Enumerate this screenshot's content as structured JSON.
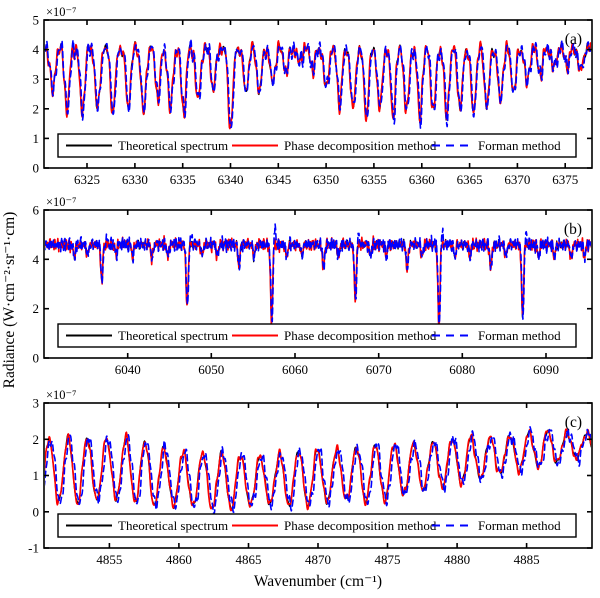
{
  "labels": {
    "xlabel": "Wavenumber (cm⁻¹)",
    "ylabel": "Radiance (W·cm⁻²·sr⁻¹·cm)"
  },
  "legend": {
    "items": [
      {
        "label": "Theoretical spectrum",
        "color": "#000000",
        "dash": "solid"
      },
      {
        "label": "Phase decomposition method",
        "color": "#ff0000",
        "dash": "solid"
      },
      {
        "label": "Forman method",
        "color": "#0000ff",
        "dash": "dashed"
      }
    ]
  },
  "chart_data": [
    {
      "id": "a",
      "type": "line",
      "panel_label": "(a)",
      "scale_label": "×10⁻⁷",
      "x_range": [
        6320.5,
        6377.8
      ],
      "y_range": [
        0,
        5
      ],
      "x_ticks": [
        6325,
        6330,
        6335,
        6340,
        6345,
        6350,
        6355,
        6360,
        6365,
        6370,
        6375
      ],
      "y_ticks": [
        0,
        1,
        2,
        3,
        4,
        5
      ],
      "signal": {
        "kind": "absorption",
        "baseline": 4.05,
        "line_width": 0.34,
        "noise_amp": 0.14,
        "noise_freqs": [
          1.05,
          1.8,
          2.6
        ],
        "seed": 11,
        "lines": [
          [
            6321.4,
            1.5
          ],
          [
            6322.9,
            2.1
          ],
          [
            6324.5,
            2.2
          ],
          [
            6326.1,
            2.1
          ],
          [
            6327.7,
            2.2
          ],
          [
            6329.3,
            2.0
          ],
          [
            6330.9,
            2.2
          ],
          [
            6332.4,
            1.7
          ],
          [
            6333.7,
            2.1
          ],
          [
            6335.1,
            2.2
          ],
          [
            6336.6,
            1.8
          ],
          [
            6338.2,
            1.4
          ],
          [
            6340.0,
            2.7
          ],
          [
            6341.6,
            1.5
          ],
          [
            6343.0,
            1.5
          ],
          [
            6344.4,
            1.2
          ],
          [
            6345.8,
            0.8
          ],
          [
            6347.2,
            0.5
          ],
          [
            6348.6,
            0.7
          ],
          [
            6350.0,
            1.4
          ],
          [
            6351.4,
            1.9
          ],
          [
            6352.8,
            2.1
          ],
          [
            6354.2,
            2.3
          ],
          [
            6355.6,
            2.1
          ],
          [
            6357.0,
            2.3
          ],
          [
            6358.4,
            2.2
          ],
          [
            6359.8,
            2.3
          ],
          [
            6361.2,
            2.2
          ],
          [
            6362.6,
            2.3
          ],
          [
            6364.0,
            2.1
          ],
          [
            6365.4,
            2.2
          ],
          [
            6366.8,
            2.0
          ],
          [
            6368.2,
            1.8
          ],
          [
            6369.6,
            1.5
          ],
          [
            6371.0,
            1.2
          ],
          [
            6372.4,
            0.9
          ],
          [
            6373.8,
            0.7
          ],
          [
            6375.2,
            0.6
          ],
          [
            6376.6,
            0.8
          ]
        ]
      },
      "series": [
        {
          "name": "Theoretical spectrum",
          "color": "#000000",
          "style": "solid",
          "width": 1.3,
          "deviation": 0,
          "shift": 0
        },
        {
          "name": "Phase decomposition method",
          "color": "#ff0000",
          "style": "solid",
          "width": 1.6,
          "deviation": 0.08,
          "shift": 0
        },
        {
          "name": "Forman method",
          "color": "#0000ff",
          "style": "dashed",
          "width": 1.6,
          "deviation": 0.12,
          "shift": 0.06
        }
      ]
    },
    {
      "id": "b",
      "type": "line",
      "panel_label": "(b)",
      "scale_label": "×10⁻⁷",
      "x_range": [
        6030,
        6095.5
      ],
      "y_range": [
        0,
        6
      ],
      "x_ticks": [
        6040,
        6050,
        6060,
        6070,
        6080,
        6090
      ],
      "y_ticks": [
        0,
        2,
        4,
        6
      ],
      "signal": {
        "kind": "absorption",
        "baseline": 4.6,
        "line_width": 0.17,
        "noise_amp": 0.13,
        "noise_freqs": [
          2.2,
          3.6,
          5.2
        ],
        "seed": 22,
        "lines": [
          [
            6033.6,
            0.5
          ],
          [
            6035.2,
            0.45
          ],
          [
            6036.9,
            1.5
          ],
          [
            6038.6,
            0.4
          ],
          [
            6040.6,
            0.5
          ],
          [
            6042.9,
            0.6
          ],
          [
            6044.8,
            0.5
          ],
          [
            6047.1,
            2.6
          ],
          [
            6048.9,
            0.45
          ],
          [
            6050.7,
            0.5
          ],
          [
            6053.3,
            0.9
          ],
          [
            6055.1,
            0.5
          ],
          [
            6057.2,
            3.2
          ],
          [
            6059.0,
            0.5
          ],
          [
            6060.8,
            0.45
          ],
          [
            6063.4,
            1.0
          ],
          [
            6065.2,
            0.5
          ],
          [
            6067.2,
            2.3
          ],
          [
            6069.0,
            0.5
          ],
          [
            6070.9,
            0.45
          ],
          [
            6073.4,
            1.05
          ],
          [
            6075.2,
            0.5
          ],
          [
            6077.2,
            3.4
          ],
          [
            6079.1,
            0.5
          ],
          [
            6080.9,
            0.5
          ],
          [
            6083.4,
            1.0
          ],
          [
            6085.2,
            0.5
          ],
          [
            6087.2,
            3.0
          ],
          [
            6089.1,
            0.5
          ],
          [
            6091.0,
            0.5
          ],
          [
            6093.0,
            0.6
          ],
          [
            6094.6,
            0.5
          ]
        ],
        "forman_spikes": [
          [
            6037.5,
            0.3
          ],
          [
            6047.6,
            0.4
          ],
          [
            6057.6,
            0.85
          ],
          [
            6067.6,
            0.5
          ],
          [
            6077.6,
            0.6
          ],
          [
            6087.6,
            0.5
          ]
        ],
        "spike_width": 0.12
      },
      "series": [
        {
          "name": "Theoretical spectrum",
          "color": "#000000",
          "style": "solid",
          "width": 1.3,
          "deviation": 0,
          "shift": 0
        },
        {
          "name": "Phase decomposition method",
          "color": "#ff0000",
          "style": "solid",
          "width": 1.6,
          "deviation": 0.09,
          "shift": 0
        },
        {
          "name": "Forman method",
          "color": "#0000ff",
          "style": "dashed",
          "width": 1.6,
          "deviation": 0.12,
          "shift": 0.04
        }
      ]
    },
    {
      "id": "c",
      "type": "line",
      "panel_label": "(c)",
      "scale_label": "×10⁻⁷",
      "x_range": [
        4850.3,
        4889.7
      ],
      "y_range": [
        -1,
        3
      ],
      "x_ticks": [
        4855,
        4860,
        4865,
        4870,
        4875,
        4880,
        4885
      ],
      "y_ticks": [
        -1,
        0,
        1,
        2,
        3
      ],
      "signal": {
        "kind": "oscillation",
        "period": 1.38,
        "phase_x0": 4850.65,
        "noise_amp": 0.07,
        "noise_freqs": [
          0.9,
          1.9,
          3.1
        ],
        "seed": 33,
        "mean_points": [
          [
            4850.3,
            1.15
          ],
          [
            4853,
            1.15
          ],
          [
            4856,
            1.2
          ],
          [
            4859,
            0.95
          ],
          [
            4862,
            0.85
          ],
          [
            4865,
            0.85
          ],
          [
            4868,
            0.9
          ],
          [
            4871,
            1.0
          ],
          [
            4874,
            1.05
          ],
          [
            4877,
            1.2
          ],
          [
            4880,
            1.4
          ],
          [
            4883,
            1.55
          ],
          [
            4886,
            1.75
          ],
          [
            4889.7,
            1.85
          ]
        ],
        "amp_points": [
          [
            4850.3,
            0.8
          ],
          [
            4853,
            0.9
          ],
          [
            4856,
            0.85
          ],
          [
            4859,
            0.8
          ],
          [
            4862,
            0.75
          ],
          [
            4865,
            0.7
          ],
          [
            4868,
            0.7
          ],
          [
            4871,
            0.75
          ],
          [
            4874,
            0.75
          ],
          [
            4877,
            0.7
          ],
          [
            4880,
            0.6
          ],
          [
            4883,
            0.55
          ],
          [
            4886,
            0.45
          ],
          [
            4889.7,
            0.35
          ]
        ]
      },
      "series": [
        {
          "name": "Theoretical spectrum",
          "color": "#000000",
          "style": "solid",
          "width": 1.3,
          "deviation": 0,
          "shift": 0
        },
        {
          "name": "Phase decomposition method",
          "color": "#ff0000",
          "style": "solid",
          "width": 1.6,
          "deviation": 0.06,
          "shift": 0
        },
        {
          "name": "Forman method",
          "color": "#0000ff",
          "style": "dashed",
          "width": 1.6,
          "deviation": 0.1,
          "shift": 0.12
        }
      ]
    }
  ]
}
